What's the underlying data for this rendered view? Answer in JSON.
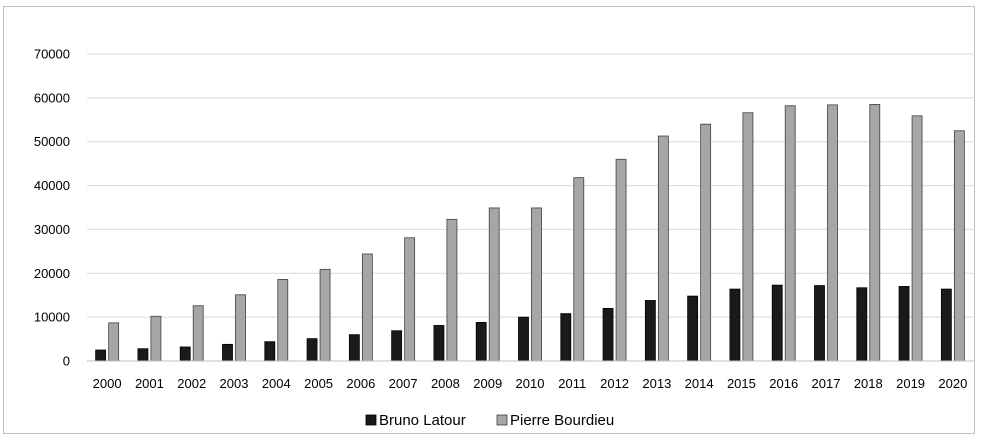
{
  "chart_data": {
    "type": "bar",
    "title": "",
    "xlabel": "",
    "ylabel": "",
    "ylim": [
      0,
      70000
    ],
    "yticks": [
      0,
      10000,
      20000,
      30000,
      40000,
      50000,
      60000,
      70000
    ],
    "grid": true,
    "legend_position": "bottom",
    "categories": [
      "2000",
      "2001",
      "2002",
      "2003",
      "2004",
      "2005",
      "2006",
      "2007",
      "2008",
      "2009",
      "2010",
      "2011",
      "2012",
      "2013",
      "2014",
      "2015",
      "2016",
      "2017",
      "2018",
      "2019",
      "2020"
    ],
    "series": [
      {
        "name": "Bruno Latour",
        "color": "#1a1a1a",
        "values": [
          2500,
          2800,
          3200,
          3800,
          4400,
          5100,
          6000,
          6900,
          8100,
          8800,
          10000,
          10800,
          12000,
          13800,
          14800,
          16400,
          17300,
          17200,
          16700,
          17000,
          16400
        ]
      },
      {
        "name": "Pierre Bourdieu",
        "color": "#a6a6a6",
        "values": [
          8700,
          10200,
          12600,
          15100,
          18600,
          20900,
          24400,
          28100,
          32300,
          34900,
          34900,
          41800,
          46000,
          51300,
          54000,
          56600,
          58200,
          58400,
          58500,
          55900,
          52500
        ]
      }
    ]
  }
}
